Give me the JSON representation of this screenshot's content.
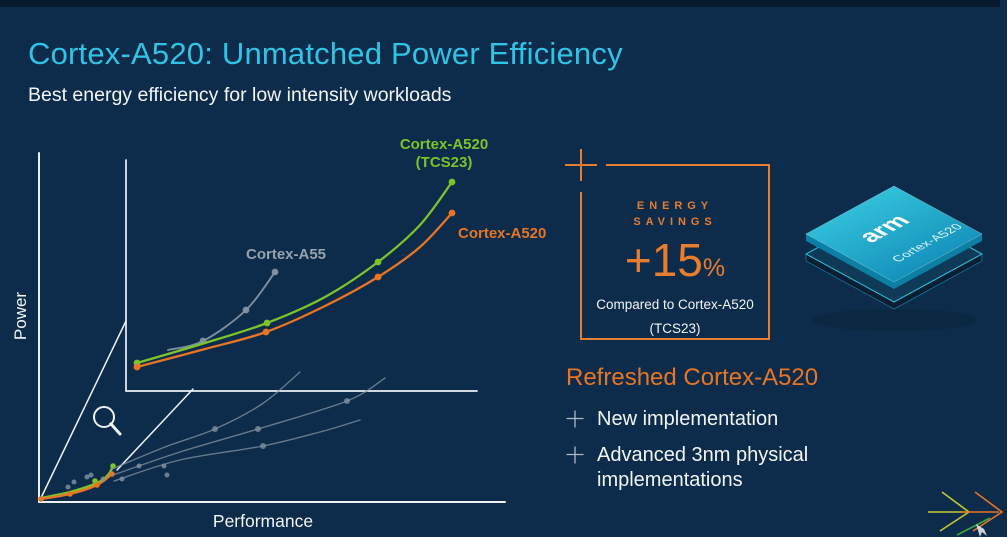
{
  "palette": {
    "bg": "#0d2b4a",
    "bg_top_strip": "#081a2e",
    "title_cyan": "#2fc3e6",
    "text_white": "#f2f5f7",
    "orange": "#e87524",
    "green": "#7dc32a",
    "gray": "#8494a4",
    "gray_label": "#97a2ad",
    "axis_white": "#edf1f5",
    "box_orange": "#e87d2e",
    "bullet_gray": "#aebbc6",
    "chip_teal_light": "#3ed3e4",
    "chip_teal_dark": "#0c84b4"
  },
  "header": {
    "title": "Cortex-A520: Unmatched Power Efficiency",
    "subtitle": "Best energy efficiency for low intensity workloads"
  },
  "chart_data": {
    "type": "line",
    "title": "",
    "xlabel": "Performance",
    "ylabel": "Power",
    "legend_position": "inline-labels",
    "grid": false,
    "description": "Conceptual power vs performance curves (no numeric scale). Bottom-left overview with magnifier; zoomed inset shows Cortex-A55 (gray), Cortex-A520 TCS23 (green) and refreshed Cortex-A520 (orange, lowest power) in px coords.",
    "axes_lines": [
      {
        "name": "main-y-axis",
        "from": [
          39,
          153
        ],
        "to": [
          39,
          502
        ],
        "w": 2
      },
      {
        "name": "main-x-axis",
        "from": [
          39,
          502
        ],
        "to": [
          505,
          502
        ],
        "w": 2
      },
      {
        "name": "inset-y-axis",
        "from": [
          126,
          160
        ],
        "to": [
          126,
          391
        ],
        "w": 1.7
      },
      {
        "name": "inset-x-axis",
        "from": [
          126,
          391
        ],
        "to": [
          477,
          391
        ],
        "w": 1.7
      }
    ],
    "connector_lines": [
      {
        "name": "zoom-connector-upper",
        "from": [
          40,
          500
        ],
        "to": [
          126,
          321
        ],
        "w": 1.5
      },
      {
        "name": "zoom-connector-lower",
        "from": [
          117,
          470
        ],
        "to": [
          193,
          389
        ],
        "w": 1.5
      }
    ],
    "magnifier": {
      "cx": 104,
      "cy": 417,
      "r": 10,
      "handle_to": [
        120,
        434
      ]
    },
    "series": [
      {
        "name": "cortex-a55-inset",
        "color": "gray",
        "width": 1.9,
        "opacity": 0.95,
        "points": [
          [
            168,
            350
          ],
          [
            203,
            341
          ],
          [
            246,
            310
          ],
          [
            275,
            272
          ]
        ],
        "dots": [
          [
            203,
            341
          ],
          [
            246,
            310
          ],
          [
            275,
            272
          ]
        ],
        "dot_r": 3.4
      },
      {
        "name": "cortex-a520-tcs23-inset",
        "color": "green",
        "width": 2.3,
        "opacity": 1,
        "points": [
          [
            137,
            363
          ],
          [
            205,
            343
          ],
          [
            267,
            323
          ],
          [
            325,
            297
          ],
          [
            378,
            262
          ],
          [
            420,
            225
          ],
          [
            452,
            182
          ]
        ],
        "dots": [
          [
            137,
            363
          ],
          [
            267,
            323
          ],
          [
            378,
            262
          ],
          [
            452,
            182
          ]
        ],
        "dot_r": 3.4
      },
      {
        "name": "cortex-a520-inset",
        "color": "orange",
        "width": 2.3,
        "opacity": 1,
        "points": [
          [
            137,
            367
          ],
          [
            205,
            349
          ],
          [
            266,
            332
          ],
          [
            325,
            306
          ],
          [
            378,
            277
          ],
          [
            420,
            247
          ],
          [
            452,
            213
          ]
        ],
        "dots": [
          [
            137,
            367
          ],
          [
            266,
            332
          ],
          [
            378,
            277
          ],
          [
            452,
            213
          ]
        ],
        "dot_r": 3.4
      },
      {
        "name": "overview-green",
        "color": "green",
        "width": 2.4,
        "opacity": 1,
        "points": [
          [
            41,
            498
          ],
          [
            70,
            492
          ],
          [
            97,
            483
          ],
          [
            108,
            475
          ],
          [
            113,
            466
          ]
        ],
        "dots": [
          [
            95,
            481
          ],
          [
            113,
            466
          ]
        ],
        "dot_r": 2.8
      },
      {
        "name": "overview-orange",
        "color": "orange",
        "width": 2.4,
        "opacity": 1,
        "points": [
          [
            41,
            499
          ],
          [
            70,
            494
          ],
          [
            97,
            485
          ],
          [
            112,
            474
          ]
        ],
        "dots": [
          [
            41,
            499
          ],
          [
            70,
            494
          ],
          [
            97,
            485
          ],
          [
            112,
            474
          ]
        ],
        "dot_r": 2.8
      },
      {
        "name": "overview-gray-curve-1",
        "color": "gray",
        "width": 1.4,
        "opacity": 0.75,
        "points": [
          [
            112,
            469
          ],
          [
            165,
            447
          ],
          [
            215,
            429
          ],
          [
            262,
            404
          ],
          [
            300,
            372
          ]
        ],
        "dots": [
          [
            215,
            429
          ]
        ],
        "dot_r": 3
      },
      {
        "name": "overview-gray-curve-2",
        "color": "gray",
        "width": 1.4,
        "opacity": 0.75,
        "points": [
          [
            113,
            475
          ],
          [
            180,
            452
          ],
          [
            258,
            429
          ],
          [
            347,
            401
          ],
          [
            385,
            378
          ]
        ],
        "dots": [
          [
            258,
            429
          ],
          [
            347,
            401
          ]
        ],
        "dot_r": 3
      },
      {
        "name": "overview-gray-curve-3",
        "color": "gray",
        "width": 1.4,
        "opacity": 0.75,
        "points": [
          [
            114,
            481
          ],
          [
            180,
            460
          ],
          [
            263,
            446
          ],
          [
            320,
            432
          ],
          [
            360,
            420
          ]
        ],
        "dots": [
          [
            263,
            446
          ]
        ],
        "dot_r": 3
      }
    ],
    "scatter_dots": {
      "color": "gray",
      "r": 2.5,
      "opacity": 0.8,
      "points": [
        [
          68,
          487
        ],
        [
          74,
          482
        ],
        [
          87,
          477
        ],
        [
          91,
          475
        ],
        [
          103,
          479
        ],
        [
          122,
          479
        ],
        [
          139,
          466
        ],
        [
          164,
          466
        ],
        [
          167,
          475
        ]
      ]
    },
    "labels": [
      {
        "name": "y-axis-label",
        "text": "Power",
        "x": 26,
        "y": 316,
        "rotate": -90,
        "color": "text_white",
        "size": 17,
        "anchor": "middle",
        "weight": 500
      },
      {
        "name": "x-axis-label",
        "text": "Performance",
        "x": 263,
        "y": 527,
        "color": "text_white",
        "size": 17.5,
        "anchor": "middle",
        "weight": 500
      },
      {
        "name": "legend-a520-tcs23-line1",
        "text": "Cortex-A520",
        "x": 444,
        "y": 149,
        "color": "green",
        "size": 15,
        "anchor": "middle",
        "weight": 700
      },
      {
        "name": "legend-a520-tcs23-line2",
        "text": "(TCS23)",
        "x": 444,
        "y": 167,
        "color": "green",
        "size": 15,
        "anchor": "middle",
        "weight": 700
      },
      {
        "name": "legend-a520",
        "text": "Cortex-A520",
        "x": 458,
        "y": 238,
        "color": "orange",
        "size": 15,
        "anchor": "start",
        "weight": 700
      },
      {
        "name": "legend-a55",
        "text": "Cortex-A55",
        "x": 246,
        "y": 259,
        "color": "gray_label",
        "size": 15,
        "anchor": "start",
        "weight": 700
      }
    ]
  },
  "energy_panel": {
    "label_line1": "ENERGY",
    "label_line2": "SAVINGS",
    "value": "+15",
    "unit": "%",
    "note_line1": "Compared to Cortex-A520",
    "note_line2": "(TCS23)"
  },
  "chip": {
    "brand": "arm",
    "label": "Cortex-A520"
  },
  "refresh_section": {
    "heading": "Refreshed Cortex-A520",
    "bullets": [
      "New implementation",
      "Advanced 3nm physical implementations"
    ]
  }
}
